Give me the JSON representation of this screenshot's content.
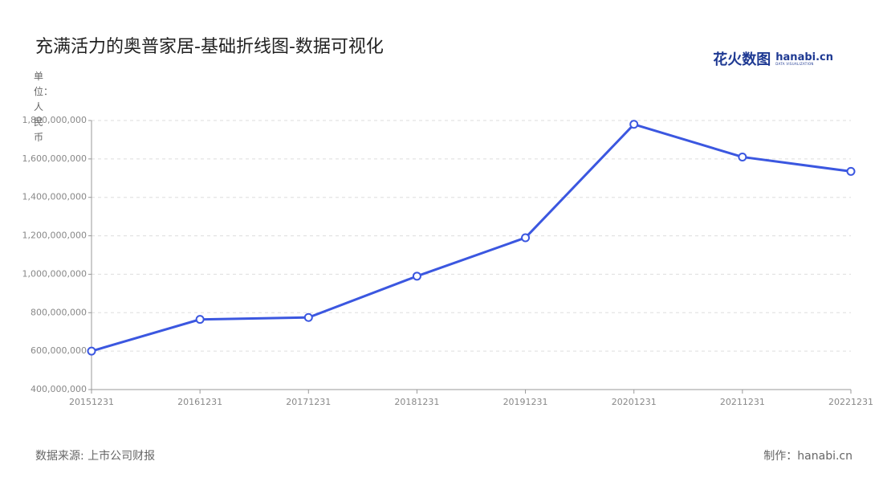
{
  "chart_data": {
    "type": "line",
    "title": "充满活力的奥普家居-基础折线图-数据可视化",
    "y_label": "单位：人民币",
    "source": "数据来源: 上市公司财报",
    "credit": "制作：hanabi.cn",
    "logo": {
      "text": "花火数图",
      "brand": "hanabi.cn",
      "tagline": "DATA VISUALIZATION"
    },
    "categories": [
      "20151231",
      "20161231",
      "20171231",
      "20181231",
      "20191231",
      "20201231",
      "20211231",
      "20221231"
    ],
    "series": [
      {
        "color": "#3b57e0",
        "values": [
          600000000,
          765000000,
          775000000,
          990000000,
          1190000000,
          1780000000,
          1610000000,
          1535000000
        ]
      }
    ],
    "ylim": [
      400000000,
      1800000000
    ],
    "yticks": [
      {
        "value": 400000000,
        "label": "400,000,000"
      },
      {
        "value": 600000000,
        "label": "600,000,000"
      },
      {
        "value": 800000000,
        "label": "800,000,000"
      },
      {
        "value": 1000000000,
        "label": "1,000,000,000"
      },
      {
        "value": 1200000000,
        "label": "1,200,000,000"
      },
      {
        "value": 1400000000,
        "label": "1,400,000,000"
      },
      {
        "value": 1600000000,
        "label": "1,600,000,000"
      },
      {
        "value": 1800000000,
        "label": "1,800,000,000"
      }
    ],
    "grid": true
  }
}
